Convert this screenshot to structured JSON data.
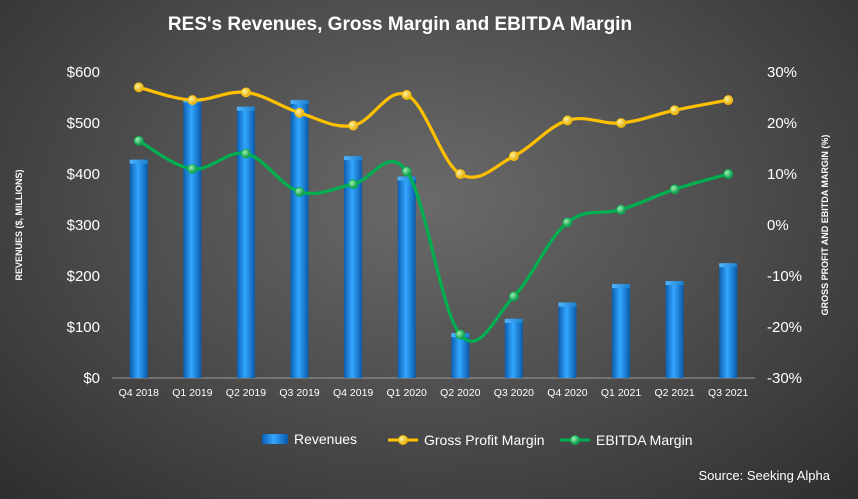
{
  "chart_data": {
    "type": "bar+line",
    "title": "RES's Revenues, Gross Margin and EBITDA Margin",
    "categories": [
      "Q4 2018",
      "Q1 2019",
      "Q2 2019",
      "Q3 2019",
      "Q4 2019",
      "Q1 2020",
      "Q2 2020",
      "Q3 2020",
      "Q4 2020",
      "Q1 2021",
      "Q2 2021",
      "Q3 2021"
    ],
    "ylabel": "REVENUES ($, MILLIONS)",
    "y2label": "GROSS PROFIT AND EBITDA MARGIN (%)",
    "ylim": [
      0,
      600
    ],
    "y2lim": [
      -30,
      30
    ],
    "yticks": [
      "$0",
      "$100",
      "$200",
      "$300",
      "$400",
      "$500",
      "$600"
    ],
    "y2ticks": [
      "-30%",
      "-20%",
      "-10%",
      "0%",
      "10%",
      "20%",
      "30%"
    ],
    "grid": false,
    "legend": "bottom",
    "series": [
      {
        "name": "Revenues",
        "kind": "bar",
        "color": "#1e8fe0",
        "values": [
          428,
          548,
          532,
          545,
          435,
          395,
          88,
          116,
          148,
          184,
          190,
          225
        ]
      },
      {
        "name": "Gross Profit Margin",
        "kind": "line",
        "axis": "right",
        "color": "#ffc000",
        "values": [
          27,
          24.5,
          26,
          22,
          19.5,
          25.5,
          10,
          13.5,
          20.5,
          20,
          22.5,
          24.5
        ]
      },
      {
        "name": "EBITDA Margin",
        "kind": "line",
        "axis": "right",
        "color": "#00b050",
        "values": [
          16.5,
          11,
          14,
          6.5,
          8,
          10.5,
          -21.5,
          -14,
          0.5,
          3,
          7,
          10
        ]
      }
    ],
    "source": "Source: Seeking Alpha"
  }
}
